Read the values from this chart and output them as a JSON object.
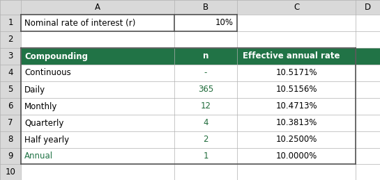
{
  "fig_width": 5.45,
  "fig_height": 2.59,
  "bg_color": "#d9d9d9",
  "header_row_label": "Nominal rate of interest (r)",
  "header_row_value": "10%",
  "col_headers": [
    "Compounding",
    "n",
    "Effective annual rate"
  ],
  "col_header_bg": "#217346",
  "col_header_fg": "#ffffff",
  "rows": [
    [
      "Continuous",
      "-",
      "10.5171%"
    ],
    [
      "Daily",
      "365",
      "10.5156%"
    ],
    [
      "Monthly",
      "12",
      "10.4713%"
    ],
    [
      "Quarterly",
      "4",
      "10.3813%"
    ],
    [
      "Half yearly",
      "2",
      "10.2500%"
    ],
    [
      "Annual",
      "1",
      "10.0000%"
    ]
  ],
  "grid_color": "#b0b0b0",
  "cell_bg": "#ffffff",
  "row_header_bg": "#d9d9d9",
  "text_color": "#000000",
  "n_col_color": "#1f6b3a",
  "annual_text_color": "#217346",
  "fontsize": 8.5
}
